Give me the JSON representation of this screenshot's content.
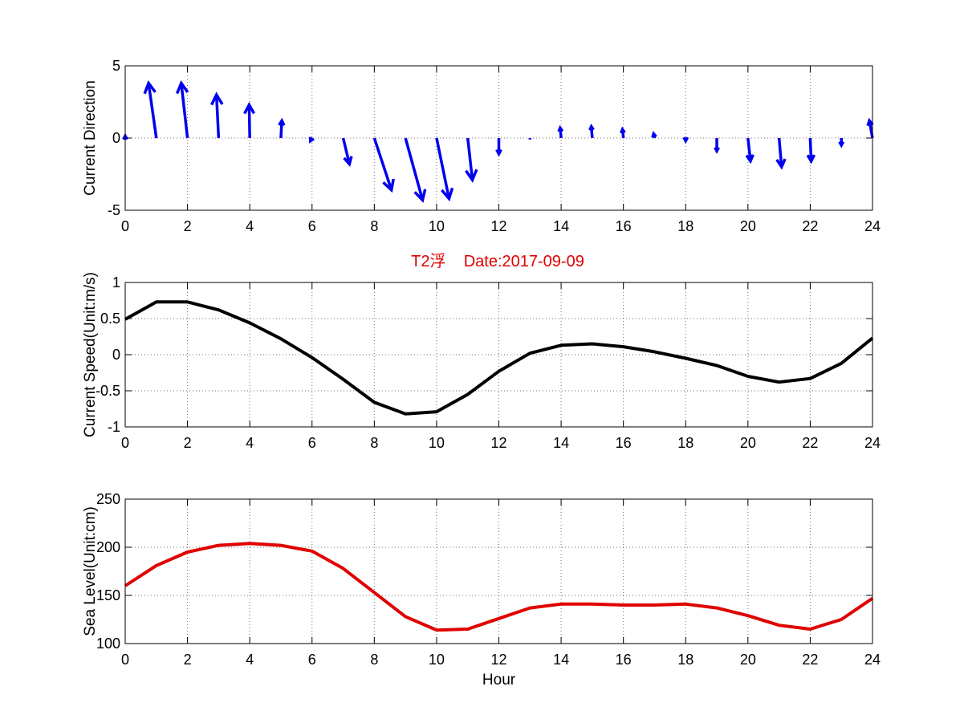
{
  "figure": {
    "title": "T2浮    Date:2017-09-09",
    "title_color": "#e00000"
  },
  "chart_data": [
    {
      "type": "quiver",
      "ylabel": "Current Direction",
      "xlabel": "",
      "xlim": [
        0,
        24
      ],
      "ylim": [
        -5,
        5
      ],
      "xticks": [
        0,
        2,
        4,
        6,
        8,
        10,
        12,
        14,
        16,
        18,
        20,
        22,
        24
      ],
      "yticks": [
        -5,
        0,
        5
      ],
      "grid": true,
      "color": "#0000ee",
      "x": [
        0,
        1,
        2,
        3,
        4,
        5,
        6,
        7,
        8,
        9,
        10,
        11,
        12,
        13,
        14,
        15,
        16,
        17,
        18,
        19,
        20,
        21,
        22,
        23,
        24
      ],
      "u": [
        0.0,
        -0.25,
        -0.2,
        -0.07,
        -0.02,
        0.03,
        -0.05,
        0.2,
        0.55,
        0.55,
        0.4,
        0.15,
        0.0,
        0.0,
        -0.03,
        -0.03,
        -0.03,
        -0.03,
        0.0,
        0.0,
        0.08,
        0.08,
        0.03,
        0.0,
        -0.1
      ],
      "v": [
        0.15,
        3.8,
        3.8,
        3.0,
        2.3,
        1.2,
        -0.2,
        -1.8,
        -3.6,
        -4.3,
        -4.2,
        -2.9,
        -1.1,
        -0.1,
        0.7,
        0.8,
        0.6,
        0.3,
        -0.2,
        -0.9,
        -1.6,
        -2.0,
        -1.6,
        -0.5,
        1.2
      ]
    },
    {
      "type": "line",
      "ylabel": "Current Speed(Unit:m/s)",
      "xlabel": "",
      "xlim": [
        0,
        24
      ],
      "ylim": [
        -1,
        1
      ],
      "xticks": [
        0,
        2,
        4,
        6,
        8,
        10,
        12,
        14,
        16,
        18,
        20,
        22,
        24
      ],
      "yticks": [
        -1,
        -0.5,
        0,
        0.5,
        1
      ],
      "grid": true,
      "color": "#000000",
      "x": [
        0,
        1,
        2,
        3,
        4,
        5,
        6,
        7,
        8,
        9,
        10,
        11,
        12,
        13,
        14,
        15,
        16,
        17,
        18,
        19,
        20,
        21,
        22,
        23,
        24
      ],
      "y": [
        0.49,
        0.73,
        0.73,
        0.62,
        0.44,
        0.22,
        -0.04,
        -0.34,
        -0.66,
        -0.82,
        -0.79,
        -0.55,
        -0.23,
        0.02,
        0.13,
        0.15,
        0.11,
        0.04,
        -0.05,
        -0.15,
        -0.3,
        -0.38,
        -0.33,
        -0.12,
        0.23
      ]
    },
    {
      "type": "line",
      "ylabel": "Sea Level(Unit:cm)",
      "xlabel": "Hour",
      "xlim": [
        0,
        24
      ],
      "ylim": [
        100,
        250
      ],
      "xticks": [
        0,
        2,
        4,
        6,
        8,
        10,
        12,
        14,
        16,
        18,
        20,
        22,
        24
      ],
      "yticks": [
        100,
        150,
        200,
        250
      ],
      "grid": true,
      "color": "#e00000",
      "x": [
        0,
        1,
        2,
        3,
        4,
        5,
        6,
        7,
        8,
        9,
        10,
        11,
        12,
        13,
        14,
        15,
        16,
        17,
        18,
        19,
        20,
        21,
        22,
        23,
        24
      ],
      "y": [
        160,
        181,
        195,
        202,
        204,
        202,
        196,
        178,
        153,
        128,
        114,
        115,
        126,
        137,
        141,
        141,
        140,
        140,
        141,
        137,
        129,
        119,
        115,
        125,
        147
      ]
    }
  ]
}
